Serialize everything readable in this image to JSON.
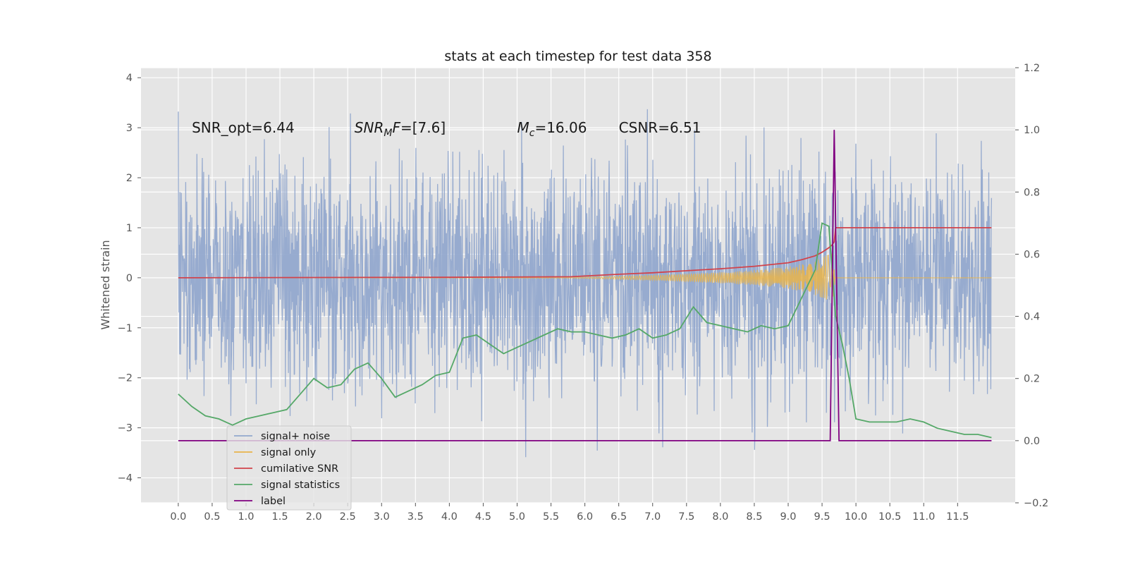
{
  "chart_data": {
    "type": "line",
    "title": "stats at each timestep for test data 358",
    "ylabel": "Whitened strain",
    "xlabel": "",
    "xlim": [
      -0.55,
      12.35
    ],
    "ylim": [
      -4.5,
      4.2
    ],
    "y2lim": [
      -0.2,
      1.2
    ],
    "x_ticks": [
      "0.0",
      "0.5",
      "1.0",
      "1.5",
      "2.0",
      "2.5",
      "3.0",
      "3.5",
      "4.0",
      "4.5",
      "5.0",
      "5.5",
      "6.0",
      "6.5",
      "7.0",
      "7.5",
      "8.0",
      "8.5",
      "9.0",
      "9.5",
      "10.0",
      "10.5",
      "11.0",
      "11.5"
    ],
    "y_ticks": [
      -4,
      -3,
      -2,
      -1,
      0,
      1,
      2,
      3,
      4
    ],
    "y2_ticks": [
      -0.2,
      0.0,
      0.2,
      0.4,
      0.6,
      0.8,
      1.0,
      1.2
    ],
    "grid": true,
    "legend_position": "lower-left",
    "annotations": [
      {
        "prefix": "SNR_opt=6.44",
        "x": 0.2,
        "y": 3.0
      },
      {
        "italic": "SNR",
        "sub": "M",
        "italic2": "F",
        "suffix": "=[7.6]",
        "x": 2.6,
        "y": 3.0
      },
      {
        "italic": "M",
        "sub": "c",
        "suffix": "=16.06",
        "x": 5.0,
        "y": 3.0
      },
      {
        "prefix": "CSNR=6.51",
        "x": 6.5,
        "y": 3.0
      }
    ],
    "series": [
      {
        "name": "signal+ noise",
        "color": "#92a8cd",
        "axis": "left",
        "description": "whitened strain noise trace, roughly within -3.5..3.5",
        "x_range": [
          0.0,
          12.0
        ],
        "amplitude_envelope": [
          -3.8,
          3.8
        ]
      },
      {
        "name": "signal only",
        "color": "#e9b44a",
        "axis": "left",
        "x": [
          0.0,
          5.8,
          6.5,
          7.0,
          7.5,
          8.0,
          8.5,
          9.0,
          9.3,
          9.5,
          9.6,
          9.65,
          9.7,
          12.0
        ],
        "envelope": [
          0.0,
          0.01,
          0.03,
          0.05,
          0.08,
          0.11,
          0.15,
          0.22,
          0.3,
          0.4,
          0.5,
          0.55,
          0.0,
          0.0
        ]
      },
      {
        "name": "cumilative SNR",
        "color": "#d1434b",
        "axis": "left",
        "x": [
          0.0,
          2.0,
          4.0,
          5.8,
          6.5,
          7.0,
          7.5,
          8.0,
          8.5,
          9.0,
          9.2,
          9.4,
          9.5,
          9.6,
          9.65,
          9.68,
          9.7,
          12.0
        ],
        "values": [
          0.0,
          0.005,
          0.01,
          0.02,
          0.07,
          0.1,
          0.14,
          0.18,
          0.23,
          0.3,
          0.36,
          0.44,
          0.51,
          0.6,
          0.66,
          0.72,
          1.0,
          1.0
        ]
      },
      {
        "name": "signal statistics",
        "color": "#55a868",
        "axis": "right",
        "x": [
          0.0,
          0.2,
          0.4,
          0.6,
          0.8,
          1.0,
          1.2,
          1.4,
          1.6,
          1.8,
          2.0,
          2.2,
          2.4,
          2.6,
          2.8,
          3.0,
          3.2,
          3.4,
          3.6,
          3.8,
          4.0,
          4.2,
          4.4,
          4.6,
          4.8,
          5.0,
          5.2,
          5.4,
          5.6,
          5.8,
          6.0,
          6.2,
          6.4,
          6.6,
          6.8,
          7.0,
          7.2,
          7.4,
          7.6,
          7.8,
          8.0,
          8.2,
          8.4,
          8.6,
          8.8,
          9.0,
          9.2,
          9.4,
          9.5,
          9.6,
          9.7,
          9.8,
          9.9,
          10.0,
          10.2,
          10.4,
          10.6,
          10.8,
          11.0,
          11.2,
          11.4,
          11.6,
          11.8,
          12.0
        ],
        "values": [
          0.15,
          0.11,
          0.08,
          0.07,
          0.05,
          0.07,
          0.08,
          0.09,
          0.1,
          0.15,
          0.2,
          0.17,
          0.18,
          0.23,
          0.25,
          0.2,
          0.14,
          0.16,
          0.18,
          0.21,
          0.22,
          0.33,
          0.34,
          0.31,
          0.28,
          0.3,
          0.32,
          0.34,
          0.36,
          0.35,
          0.35,
          0.34,
          0.33,
          0.34,
          0.36,
          0.33,
          0.34,
          0.36,
          0.43,
          0.38,
          0.37,
          0.36,
          0.35,
          0.37,
          0.36,
          0.37,
          0.46,
          0.55,
          0.7,
          0.69,
          0.4,
          0.31,
          0.2,
          0.07,
          0.06,
          0.06,
          0.06,
          0.07,
          0.06,
          0.04,
          0.03,
          0.02,
          0.02,
          0.01
        ]
      },
      {
        "name": "label",
        "color": "#800080",
        "axis": "right",
        "x": [
          0.0,
          9.62,
          9.68,
          9.75,
          12.0
        ],
        "values": [
          0.0,
          0.0,
          1.0,
          0.0,
          0.0
        ]
      }
    ]
  },
  "legend": {
    "items": [
      {
        "label": "signal+ noise",
        "color": "#92a8cd"
      },
      {
        "label": "signal only",
        "color": "#e9b44a"
      },
      {
        "label": "cumilative SNR",
        "color": "#d1434b"
      },
      {
        "label": "signal statistics",
        "color": "#55a868"
      },
      {
        "label": "label",
        "color": "#800080"
      }
    ]
  }
}
